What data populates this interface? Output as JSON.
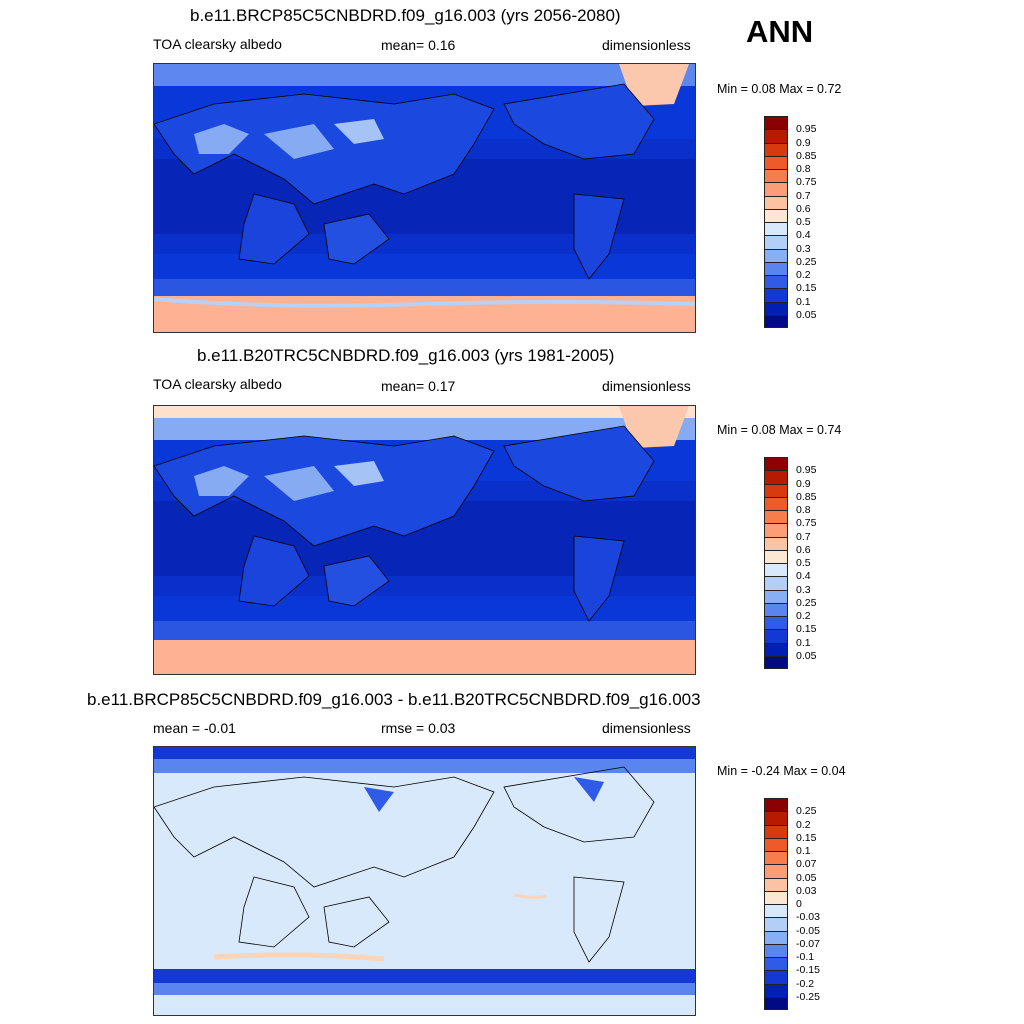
{
  "season": "ANN",
  "panels": [
    {
      "title": "b.e11.BRCP85C5CNBDRD.f09_g16.003 (yrs 2056-2080)",
      "left": "TOA clearsky albedo",
      "center": "mean=   0.16",
      "right": "dimensionless",
      "minmax": "Min =   0.08 Max =   0.72",
      "palette": "abs",
      "labels": [
        "0.95",
        "0.9",
        "0.85",
        "0.8",
        "0.75",
        "0.7",
        "0.6",
        "0.5",
        "0.4",
        "0.3",
        "0.25",
        "0.2",
        "0.15",
        "0.1",
        "0.05"
      ]
    },
    {
      "title": "b.e11.B20TRC5CNBDRD.f09_g16.003 (yrs 1981-2005)",
      "left": "TOA clearsky albedo",
      "center": "mean=   0.17",
      "right": "dimensionless",
      "minmax": "Min =   0.08 Max =   0.74",
      "palette": "abs",
      "labels": [
        "0.95",
        "0.9",
        "0.85",
        "0.8",
        "0.75",
        "0.7",
        "0.6",
        "0.5",
        "0.4",
        "0.3",
        "0.25",
        "0.2",
        "0.15",
        "0.1",
        "0.05"
      ]
    },
    {
      "title": "b.e11.BRCP85C5CNBDRD.f09_g16.003 - b.e11.B20TRC5CNBDRD.f09_g16.003",
      "left": "mean =  -0.01",
      "center": "rmse =   0.03",
      "right": "dimensionless",
      "minmax": "Min =  -0.24 Max =   0.04",
      "palette": "diff",
      "labels": [
        "0.25",
        "0.2",
        "0.15",
        "0.1",
        "0.07",
        "0.05",
        "0.03",
        "0",
        "-0.03",
        "-0.05",
        "-0.07",
        "-0.1",
        "-0.15",
        "-0.2",
        "-0.25"
      ]
    }
  ],
  "colors": {
    "abs_scale": [
      "#8b0000",
      "#b81a00",
      "#d83a10",
      "#ee5a28",
      "#f77d4d",
      "#fb9e78",
      "#fcc3a3",
      "#fde6d2",
      "#d8e9fb",
      "#b3cff7",
      "#88aef4",
      "#5a85ee",
      "#2f5be6",
      "#1438d4",
      "#0020b4",
      "#000a84"
    ],
    "diff_scale": [
      "#8b0000",
      "#b81a00",
      "#d83a10",
      "#ee5a28",
      "#f77d4d",
      "#fb9e78",
      "#fcc3a3",
      "#fde6d2",
      "#d8e9fb",
      "#b3cff7",
      "#88aef4",
      "#5a85ee",
      "#2f5be6",
      "#1438d4",
      "#0020b4",
      "#000a84"
    ]
  }
}
